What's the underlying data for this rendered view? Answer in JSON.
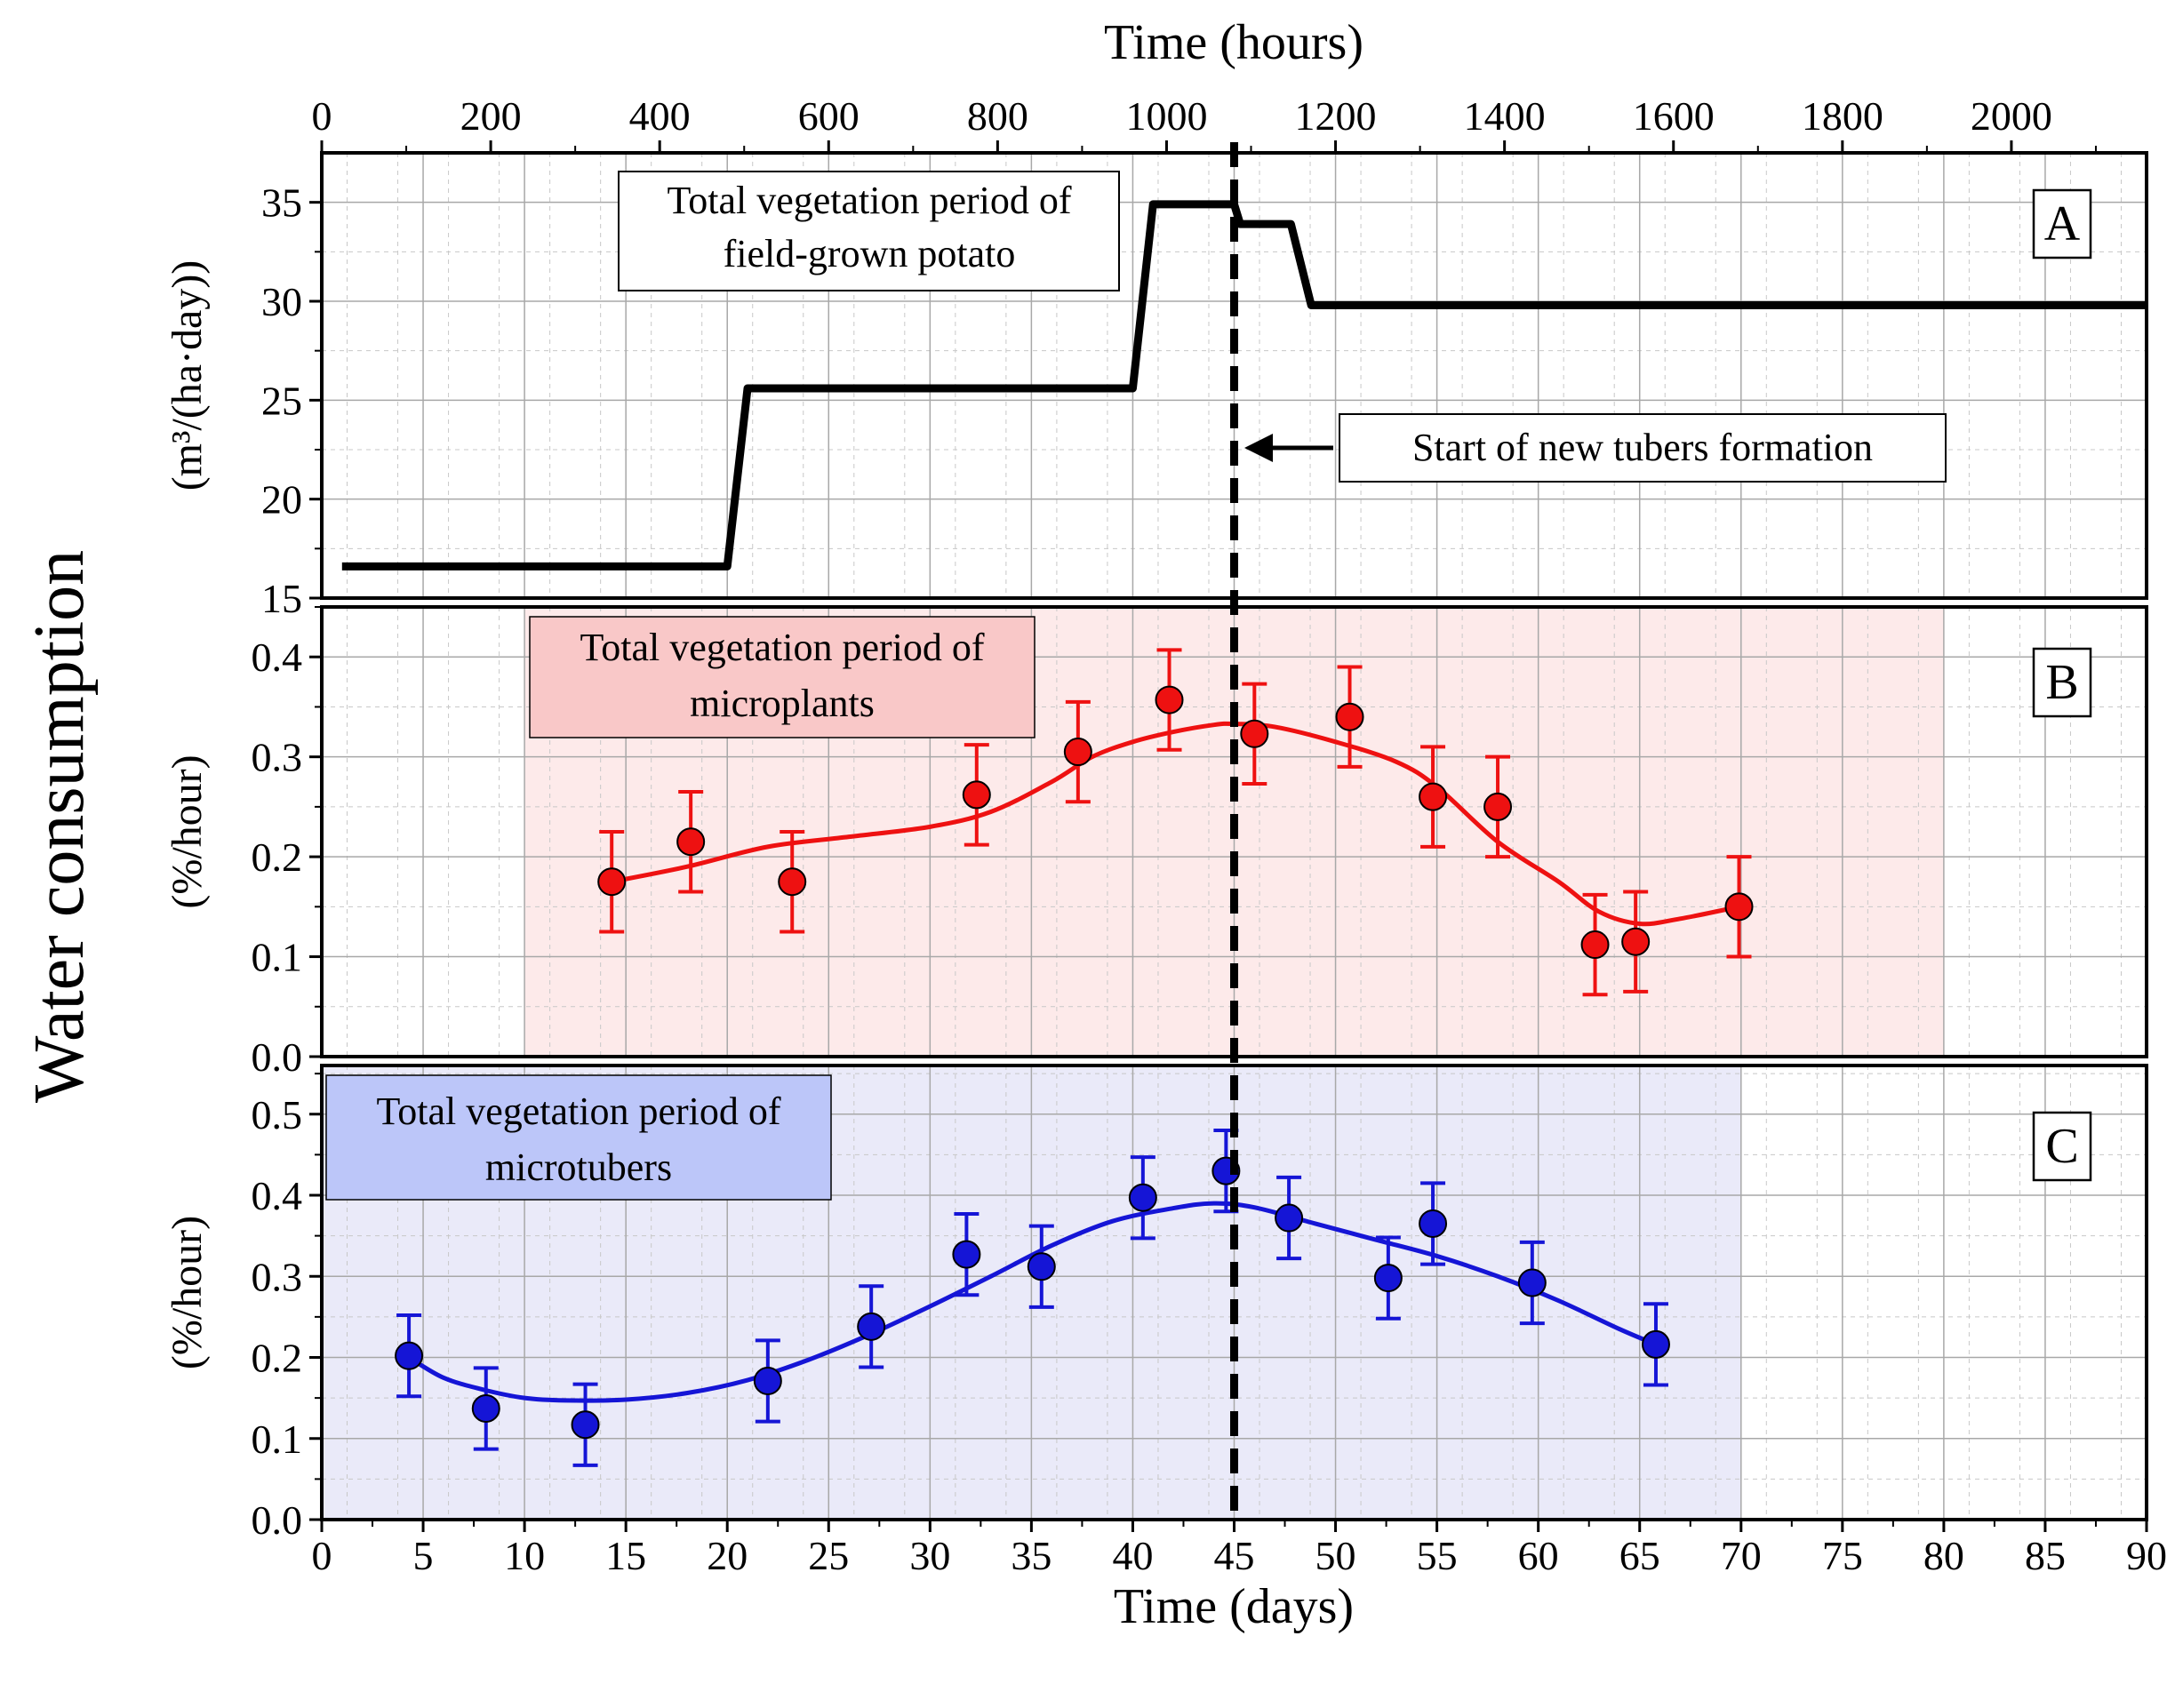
{
  "figure": {
    "ylabel_main": "Water consumption",
    "xlabel_top": "Time (hours)",
    "xlabel_bottom": "Time (days)",
    "marker_label": "Start of new tubers formation",
    "colors": {
      "panelA_line": "#000000",
      "panelB": "#ee1111",
      "panelC": "#1515d6",
      "panelB_shade": "#fdeaea",
      "panelC_shade": "#eaeaf9",
      "panelB_box": "#f9c8c8",
      "panelC_box": "#bcc6f9"
    }
  },
  "chart_data": [
    {
      "id": "A",
      "type": "line",
      "panel_label": "A",
      "ylabel": "(m³/(ha·day))",
      "annotation_line1": "Total vegetation period of",
      "annotation_line2": "field-grown potato",
      "ylim": [
        15,
        37.5
      ],
      "yticks": [
        15,
        20,
        25,
        30,
        35
      ],
      "ytick_labels": [
        "15",
        "20",
        "25",
        "30",
        "35"
      ],
      "x_axis_hours": {
        "range": [
          0,
          2160
        ],
        "ticks": [
          0,
          200,
          400,
          600,
          800,
          1000,
          1200,
          1400,
          1600,
          1800,
          2000
        ],
        "labels": [
          "0",
          "200",
          "400",
          "600",
          "800",
          "1000",
          "1200",
          "1400",
          "1600",
          "1800",
          "2000"
        ]
      },
      "x": [
        1,
        20,
        21,
        40,
        41,
        45,
        45.3,
        47.8,
        48.8,
        90
      ],
      "y": [
        16.6,
        16.6,
        25.6,
        25.6,
        34.9,
        34.9,
        33.9,
        33.9,
        29.8,
        29.8
      ]
    },
    {
      "id": "B",
      "type": "scatter",
      "panel_label": "B",
      "ylabel": "(%/hour)",
      "annotation_line1": "Total vegetation period of",
      "annotation_line2": "microplants",
      "ylim": [
        0,
        0.45
      ],
      "yticks": [
        0,
        0.1,
        0.2,
        0.3,
        0.4
      ],
      "ytick_labels": [
        "0.0",
        "0.1",
        "0.2",
        "0.3",
        "0.4"
      ],
      "shade_range_days": [
        10,
        80
      ],
      "x": [
        14.3,
        18.2,
        23.2,
        32.3,
        37.3,
        41.8,
        46.0,
        50.7,
        54.8,
        58.0,
        62.8,
        64.8,
        69.9
      ],
      "y": [
        0.175,
        0.215,
        0.175,
        0.262,
        0.305,
        0.357,
        0.323,
        0.34,
        0.26,
        0.25,
        0.112,
        0.115,
        0.15
      ],
      "err": [
        0.05,
        0.05,
        0.05,
        0.05,
        0.05,
        0.05,
        0.05,
        0.05,
        0.05,
        0.05,
        0.05,
        0.05,
        0.05
      ],
      "fit_x": [
        14.3,
        18,
        22,
        26,
        30,
        33,
        36,
        38,
        40,
        42,
        44,
        45,
        47,
        50,
        53,
        55,
        58,
        61,
        63,
        65,
        67,
        69.9
      ],
      "fit_y": [
        0.175,
        0.19,
        0.21,
        0.22,
        0.23,
        0.245,
        0.275,
        0.3,
        0.315,
        0.325,
        0.332,
        0.333,
        0.33,
        0.315,
        0.295,
        0.27,
        0.215,
        0.175,
        0.145,
        0.133,
        0.138,
        0.15
      ]
    },
    {
      "id": "C",
      "type": "scatter",
      "panel_label": "C",
      "ylabel": "(%/hour)",
      "annotation_line1": "Total vegetation period of",
      "annotation_line2": "microtubers",
      "ylim": [
        0,
        0.56
      ],
      "yticks": [
        0,
        0.1,
        0.2,
        0.3,
        0.4,
        0.5
      ],
      "ytick_labels": [
        "0.0",
        "0.1",
        "0.2",
        "0.3",
        "0.4",
        "0.5"
      ],
      "shade_range_days": [
        0,
        70
      ],
      "x_axis_days": {
        "range": [
          0,
          90
        ],
        "ticks": [
          0,
          5,
          10,
          15,
          20,
          25,
          30,
          35,
          40,
          45,
          50,
          55,
          60,
          65,
          70,
          75,
          80,
          85,
          90
        ],
        "labels": [
          "0",
          "5",
          "10",
          "15",
          "20",
          "25",
          "30",
          "35",
          "40",
          "45",
          "50",
          "55",
          "60",
          "65",
          "70",
          "75",
          "80",
          "85",
          "90"
        ]
      },
      "x": [
        4.3,
        8.1,
        13.0,
        22.0,
        27.1,
        31.8,
        35.5,
        40.5,
        44.6,
        47.7,
        52.6,
        54.8,
        59.7,
        65.8
      ],
      "y": [
        0.202,
        0.137,
        0.117,
        0.171,
        0.238,
        0.327,
        0.312,
        0.397,
        0.43,
        0.372,
        0.298,
        0.365,
        0.292,
        0.216
      ],
      "err": [
        0.05,
        0.05,
        0.05,
        0.05,
        0.05,
        0.05,
        0.05,
        0.05,
        0.05,
        0.05,
        0.05,
        0.05,
        0.05,
        0.05
      ],
      "fit_x": [
        4.3,
        6,
        8,
        10,
        12,
        15,
        18,
        21,
        24,
        27,
        30,
        33,
        36,
        39,
        42,
        44,
        46,
        49,
        52,
        55,
        58,
        61,
        64,
        65.8
      ],
      "fit_y": [
        0.2,
        0.175,
        0.16,
        0.15,
        0.147,
        0.148,
        0.156,
        0.172,
        0.197,
        0.228,
        0.263,
        0.3,
        0.338,
        0.368,
        0.384,
        0.39,
        0.385,
        0.365,
        0.345,
        0.325,
        0.3,
        0.27,
        0.235,
        0.216
      ]
    }
  ]
}
